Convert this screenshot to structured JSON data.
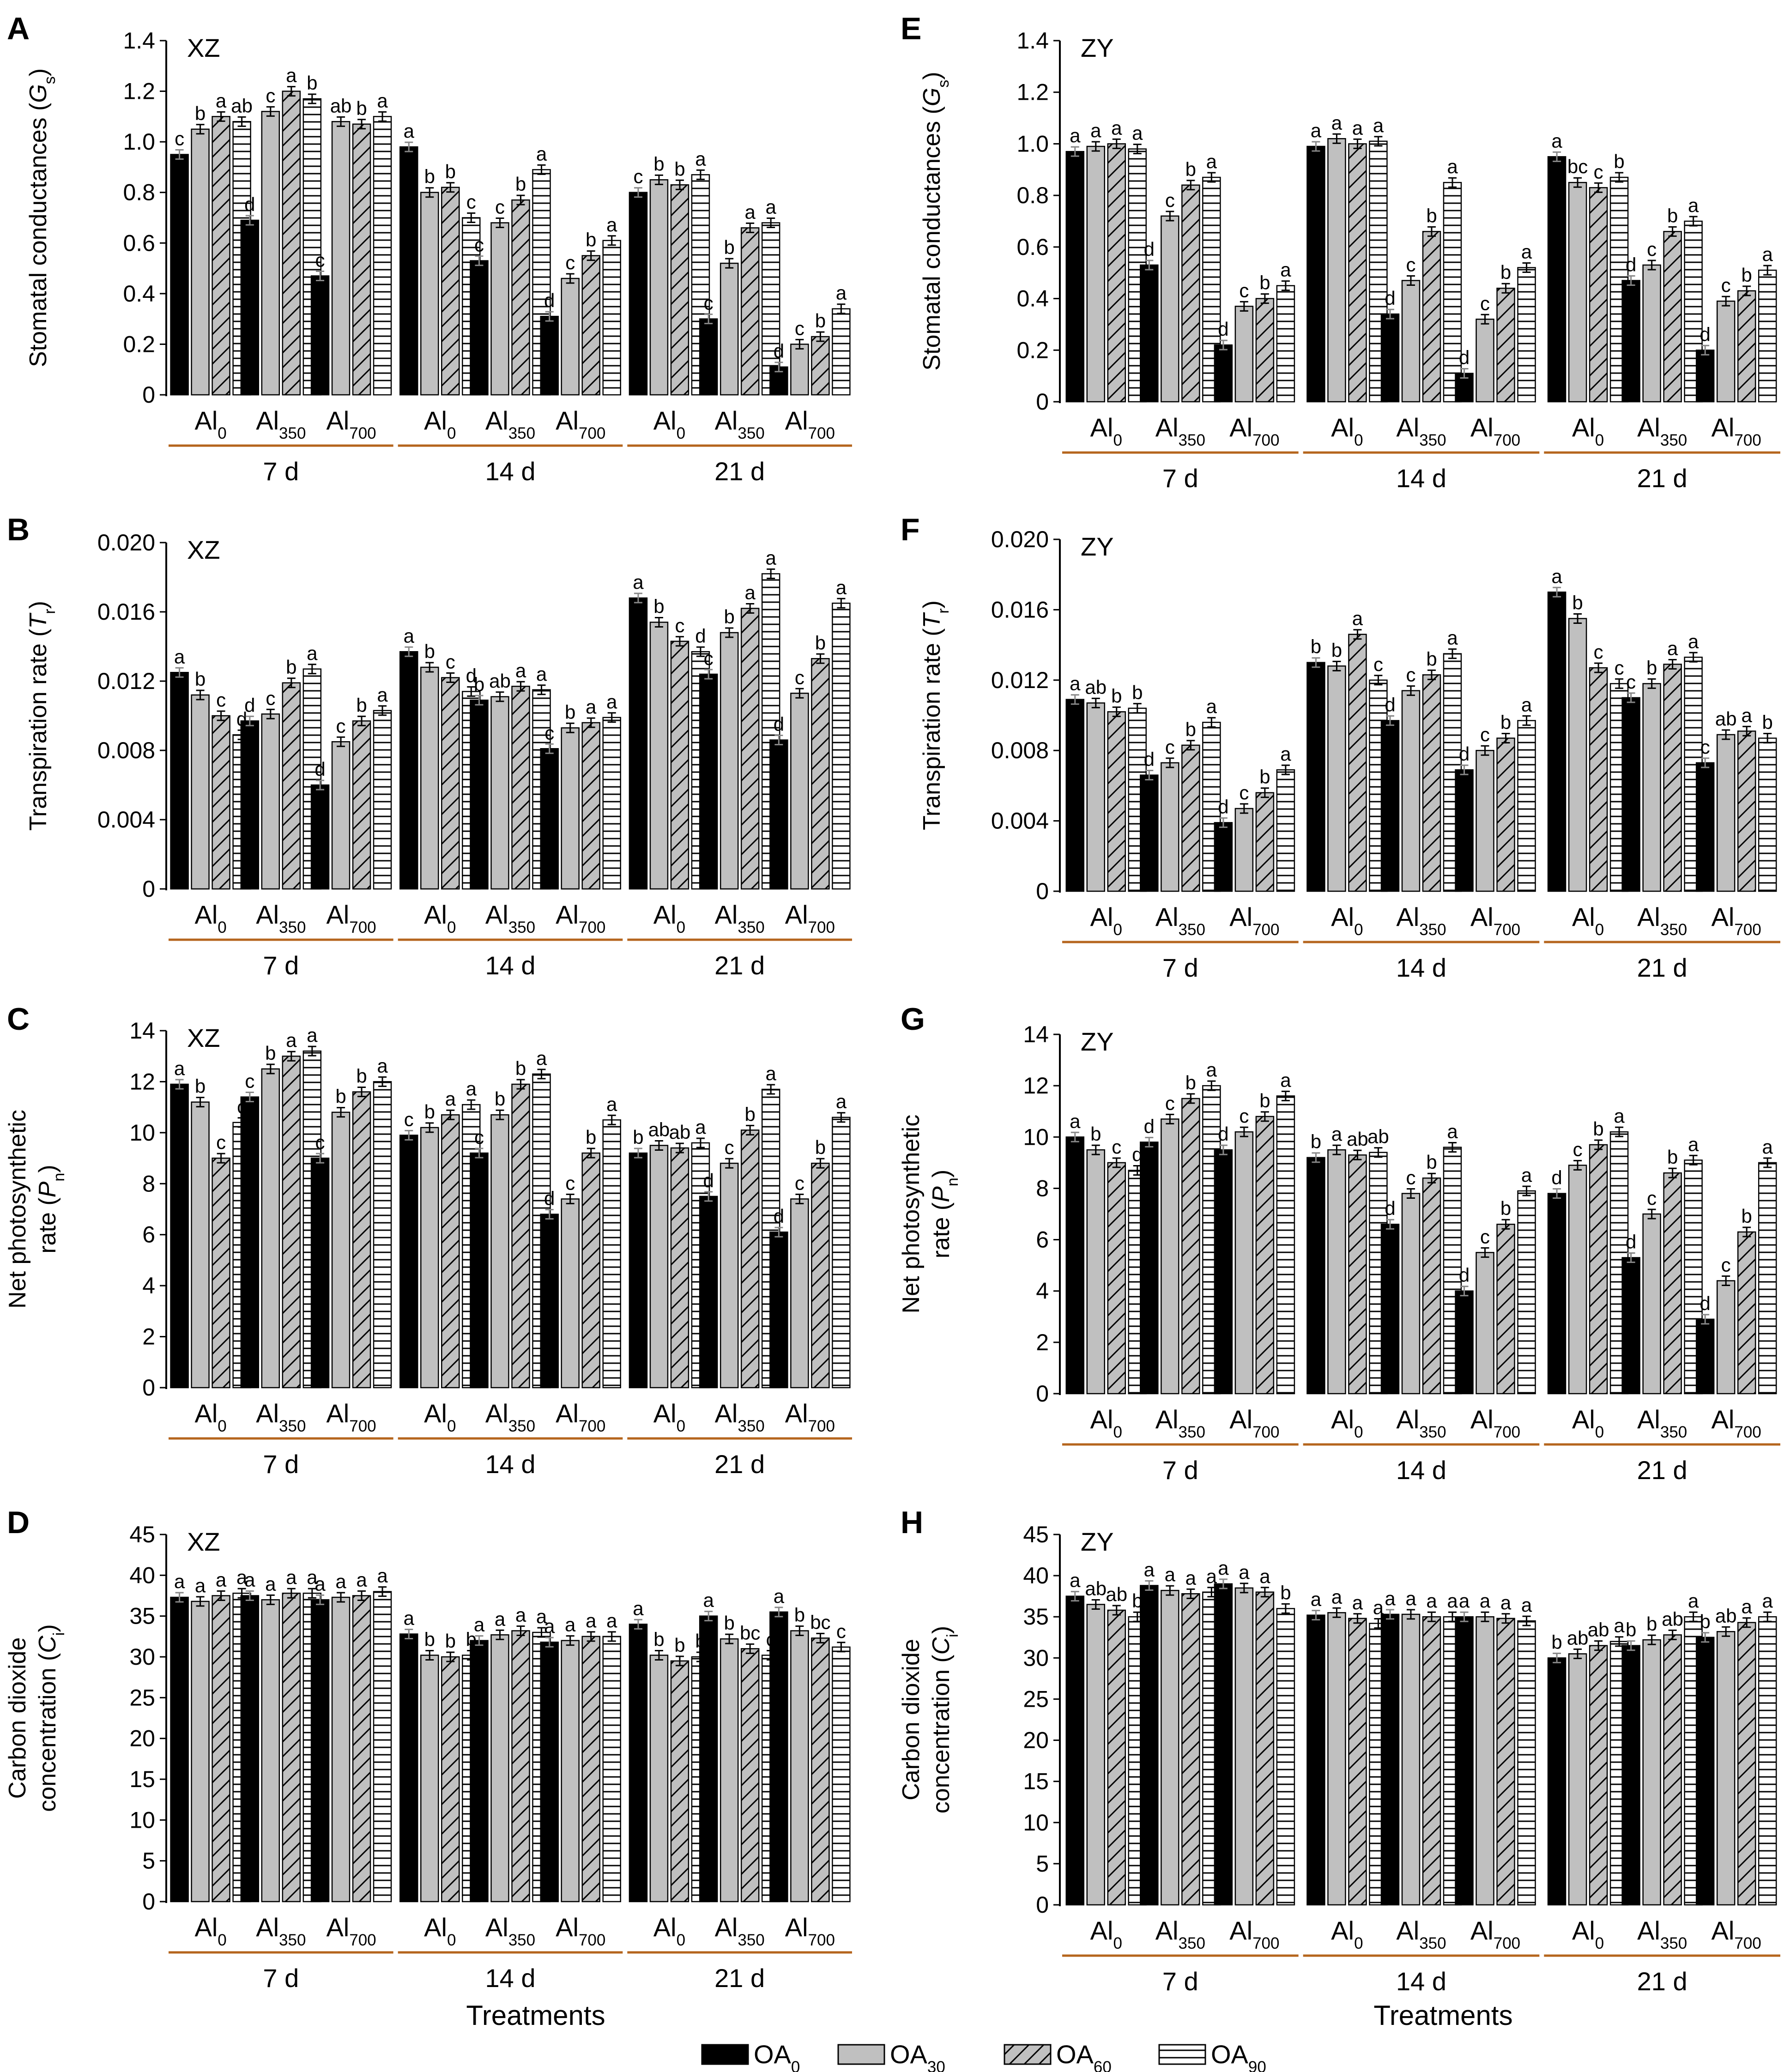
{
  "legend": {
    "items": [
      {
        "base": "OA",
        "sub": "0",
        "pattern": "solid"
      },
      {
        "base": "OA",
        "sub": "30",
        "pattern": "grey"
      },
      {
        "base": "OA",
        "sub": "60",
        "pattern": "diagonal"
      },
      {
        "base": "OA",
        "sub": "90",
        "pattern": "horizontal"
      }
    ]
  },
  "colors": {
    "solid": "#000000",
    "grey": "#c0c0c0",
    "bracket": "#b5651d"
  },
  "treatments_label": "Treatments",
  "days": [
    "7 d",
    "14 d",
    "21 d"
  ],
  "al_levels": [
    {
      "base": "Al",
      "sub": "0"
    },
    {
      "base": "Al",
      "sub": "350"
    },
    {
      "base": "Al",
      "sub": "700"
    }
  ],
  "chart_data": [
    {
      "panel": "A",
      "cultivar": "XZ",
      "type": "bar",
      "ylabel": {
        "pre": "Stomatal conductances (",
        "var": "G",
        "sub": "s",
        "post": ")"
      },
      "ylim": [
        0,
        1.4
      ],
      "ticks": [
        "0",
        "0.2",
        "0.4",
        "0.6",
        "0.8",
        "1.0",
        "1.2",
        "1.4"
      ],
      "series_names": [
        "OA0",
        "OA30",
        "OA60",
        "OA90"
      ],
      "values": [
        [
          [
            0.95,
            1.05,
            1.1,
            1.08
          ],
          [
            0.69,
            1.12,
            1.2,
            1.17
          ],
          [
            0.47,
            1.08,
            1.07,
            1.1
          ]
        ],
        [
          [
            0.98,
            0.8,
            0.82,
            0.7
          ],
          [
            0.53,
            0.68,
            0.77,
            0.89
          ],
          [
            0.31,
            0.46,
            0.55,
            0.61
          ]
        ],
        [
          [
            0.8,
            0.85,
            0.83,
            0.87
          ],
          [
            0.3,
            0.52,
            0.66,
            0.68
          ],
          [
            0.11,
            0.2,
            0.23,
            0.34
          ]
        ]
      ],
      "letters": [
        [
          [
            "c",
            "b",
            "a",
            "ab"
          ],
          [
            "d",
            "c",
            "a",
            "b"
          ],
          [
            "c",
            "ab",
            "b",
            "a"
          ]
        ],
        [
          [
            "a",
            "b",
            "b",
            "c"
          ],
          [
            "c",
            "c",
            "b",
            "a"
          ],
          [
            "d",
            "c",
            "b",
            "a"
          ]
        ],
        [
          [
            "c",
            "b",
            "b",
            "a"
          ],
          [
            "c",
            "b",
            "a",
            "a"
          ],
          [
            "d",
            "c",
            "b",
            "a"
          ]
        ]
      ]
    },
    {
      "panel": "B",
      "cultivar": "XZ",
      "type": "bar",
      "ylabel": {
        "pre": "Transpiration rate (",
        "var": "T",
        "sub": "r",
        "post": ")"
      },
      "ylim": [
        0,
        0.02
      ],
      "ticks": [
        "0",
        "0.004",
        "0.008",
        "0.012",
        "0.016",
        "0.020"
      ],
      "series_names": [
        "OA0",
        "OA30",
        "OA60",
        "OA90"
      ],
      "values": [
        [
          [
            0.0125,
            0.0112,
            0.01,
            0.0089
          ],
          [
            0.0097,
            0.0101,
            0.0119,
            0.0127
          ],
          [
            0.006,
            0.0085,
            0.0097,
            0.0103
          ]
        ],
        [
          [
            0.0137,
            0.0128,
            0.0122,
            0.0114
          ],
          [
            0.0109,
            0.0111,
            0.0117,
            0.0115
          ],
          [
            0.0081,
            0.0093,
            0.0096,
            0.0099
          ]
        ],
        [
          [
            0.0168,
            0.0154,
            0.0143,
            0.0137
          ],
          [
            0.0124,
            0.0148,
            0.0162,
            0.0182
          ],
          [
            0.0086,
            0.0113,
            0.0133,
            0.0165
          ]
        ]
      ],
      "letters": [
        [
          [
            "a",
            "b",
            "c",
            "d"
          ],
          [
            "d",
            "c",
            "b",
            "a"
          ],
          [
            "d",
            "c",
            "b",
            "a"
          ]
        ],
        [
          [
            "a",
            "b",
            "c",
            "d"
          ],
          [
            "b",
            "ab",
            "a",
            "a"
          ],
          [
            "c",
            "b",
            "a",
            "a"
          ]
        ],
        [
          [
            "a",
            "b",
            "c",
            "d"
          ],
          [
            "c",
            "b",
            "a",
            "a"
          ],
          [
            "d",
            "c",
            "b",
            "a"
          ]
        ]
      ]
    },
    {
      "panel": "C",
      "cultivar": "XZ",
      "type": "bar",
      "ylabel": {
        "pre": "Net photosynthetic",
        "pre2": "rate (",
        "var": "P",
        "sub": "n",
        "post": ")"
      },
      "ylim": [
        0,
        14
      ],
      "ticks": [
        "0",
        "2",
        "4",
        "6",
        "8",
        "10",
        "12",
        "14"
      ],
      "series_names": [
        "OA0",
        "OA30",
        "OA60",
        "OA90"
      ],
      "values": [
        [
          [
            11.9,
            11.2,
            9.0,
            10.4
          ],
          [
            11.4,
            12.5,
            13.0,
            13.2
          ],
          [
            9.0,
            10.8,
            11.6,
            12.0
          ]
        ],
        [
          [
            9.9,
            10.2,
            10.7,
            11.1
          ],
          [
            9.2,
            10.7,
            11.9,
            12.3
          ],
          [
            6.8,
            7.4,
            9.2,
            10.5
          ]
        ],
        [
          [
            9.2,
            9.5,
            9.4,
            9.6
          ],
          [
            7.5,
            8.8,
            10.1,
            11.7
          ],
          [
            6.1,
            7.4,
            8.8,
            10.6
          ]
        ]
      ],
      "letters": [
        [
          [
            "a",
            "b",
            "c",
            "c"
          ],
          [
            "c",
            "b",
            "a",
            "a"
          ],
          [
            "c",
            "b",
            "b",
            "a"
          ]
        ],
        [
          [
            "c",
            "b",
            "a",
            "a"
          ],
          [
            "c",
            "b",
            "b",
            "a"
          ],
          [
            "d",
            "c",
            "b",
            "a"
          ]
        ],
        [
          [
            "b",
            "ab",
            "ab",
            "a"
          ],
          [
            "d",
            "c",
            "b",
            "a"
          ],
          [
            "d",
            "c",
            "b",
            "a"
          ]
        ]
      ]
    },
    {
      "panel": "D",
      "cultivar": "XZ",
      "type": "bar",
      "ylabel": {
        "pre": "Carbon dioxide",
        "pre2": "concentration (",
        "var": "C",
        "sub": "i",
        "post": ")"
      },
      "ylim": [
        0,
        45
      ],
      "ticks": [
        "0",
        "5",
        "10",
        "15",
        "20",
        "25",
        "30",
        "35",
        "40",
        "45"
      ],
      "series_names": [
        "OA0",
        "OA30",
        "OA60",
        "OA90"
      ],
      "values": [
        [
          [
            37.3,
            36.8,
            37.5,
            37.8
          ],
          [
            37.5,
            37.0,
            37.8,
            37.8
          ],
          [
            37.0,
            37.3,
            37.5,
            38.0
          ]
        ],
        [
          [
            32.8,
            30.2,
            30.0,
            30.2
          ],
          [
            32.0,
            32.7,
            33.2,
            33.0
          ],
          [
            31.8,
            32.0,
            32.5,
            32.5
          ]
        ],
        [
          [
            34.0,
            30.2,
            29.5,
            30.0
          ],
          [
            35.0,
            32.2,
            31.0,
            30.2
          ],
          [
            35.5,
            33.2,
            32.3,
            31.2
          ]
        ]
      ],
      "letters": [
        [
          [
            "a",
            "a",
            "a",
            "a"
          ],
          [
            "a",
            "a",
            "a",
            "a"
          ],
          [
            "a",
            "a",
            "a",
            "a"
          ]
        ],
        [
          [
            "a",
            "b",
            "b",
            "b"
          ],
          [
            "a",
            "a",
            "a",
            "a"
          ],
          [
            "a",
            "a",
            "a",
            "a"
          ]
        ],
        [
          [
            "a",
            "b",
            "b",
            "b"
          ],
          [
            "a",
            "b",
            "bc",
            "c"
          ],
          [
            "a",
            "b",
            "bc",
            "c"
          ]
        ]
      ]
    },
    {
      "panel": "E",
      "cultivar": "ZY",
      "type": "bar",
      "ylabel": {
        "pre": "Stomatal conductances (",
        "var": "G",
        "sub": "s",
        "post": ")"
      },
      "ylim": [
        0,
        1.4
      ],
      "ticks": [
        "0",
        "0.2",
        "0.4",
        "0.6",
        "0.8",
        "1.0",
        "1.2",
        "1.4"
      ],
      "series_names": [
        "OA0",
        "OA30",
        "OA60",
        "OA90"
      ],
      "values": [
        [
          [
            0.97,
            0.99,
            1.0,
            0.98
          ],
          [
            0.53,
            0.72,
            0.84,
            0.87
          ],
          [
            0.22,
            0.37,
            0.4,
            0.45
          ]
        ],
        [
          [
            0.99,
            1.02,
            1.0,
            1.01
          ],
          [
            0.34,
            0.47,
            0.66,
            0.85
          ],
          [
            0.11,
            0.32,
            0.44,
            0.52
          ]
        ],
        [
          [
            0.95,
            0.85,
            0.83,
            0.87
          ],
          [
            0.47,
            0.53,
            0.66,
            0.7
          ],
          [
            0.2,
            0.39,
            0.43,
            0.51
          ]
        ]
      ],
      "letters": [
        [
          [
            "a",
            "a",
            "a",
            "a"
          ],
          [
            "d",
            "c",
            "b",
            "a"
          ],
          [
            "d",
            "c",
            "b",
            "a"
          ]
        ],
        [
          [
            "a",
            "a",
            "a",
            "a"
          ],
          [
            "d",
            "c",
            "b",
            "a"
          ],
          [
            "d",
            "c",
            "b",
            "a"
          ]
        ],
        [
          [
            "a",
            "bc",
            "c",
            "b"
          ],
          [
            "d",
            "c",
            "b",
            "a"
          ],
          [
            "d",
            "c",
            "b",
            "a"
          ]
        ]
      ]
    },
    {
      "panel": "F",
      "cultivar": "ZY",
      "type": "bar",
      "ylabel": {
        "pre": "Transpiration rate (",
        "var": "T",
        "sub": "r",
        "post": ")"
      },
      "ylim": [
        0,
        0.02
      ],
      "ticks": [
        "0",
        "0.004",
        "0.008",
        "0.012",
        "0.016",
        "0.020"
      ],
      "series_names": [
        "OA0",
        "OA30",
        "OA60",
        "OA90"
      ],
      "values": [
        [
          [
            0.0109,
            0.0107,
            0.0102,
            0.0104
          ],
          [
            0.0066,
            0.0073,
            0.0083,
            0.0096
          ],
          [
            0.0039,
            0.0047,
            0.0056,
            0.0069
          ]
        ],
        [
          [
            0.013,
            0.0128,
            0.0146,
            0.012
          ],
          [
            0.0097,
            0.0114,
            0.0123,
            0.0135
          ],
          [
            0.0069,
            0.008,
            0.0087,
            0.0097
          ]
        ],
        [
          [
            0.017,
            0.0155,
            0.0127,
            0.0118
          ],
          [
            0.011,
            0.0118,
            0.0129,
            0.0133
          ],
          [
            0.0073,
            0.0089,
            0.0091,
            0.0087
          ]
        ]
      ],
      "letters": [
        [
          [
            "a",
            "ab",
            "b",
            "b"
          ],
          [
            "d",
            "c",
            "b",
            "a"
          ],
          [
            "d",
            "c",
            "b",
            "a"
          ]
        ],
        [
          [
            "b",
            "b",
            "a",
            "c"
          ],
          [
            "d",
            "c",
            "b",
            "a"
          ],
          [
            "d",
            "c",
            "b",
            "a"
          ]
        ],
        [
          [
            "a",
            "b",
            "c",
            "c"
          ],
          [
            "c",
            "b",
            "a",
            "a"
          ],
          [
            "c",
            "ab",
            "a",
            "b"
          ]
        ]
      ]
    },
    {
      "panel": "G",
      "cultivar": "ZY",
      "type": "bar",
      "ylabel": {
        "pre": "Net photosynthetic",
        "pre2": "rate (",
        "var": "P",
        "sub": "n",
        "post": ")"
      },
      "ylim": [
        0,
        14
      ],
      "ticks": [
        "0",
        "2",
        "4",
        "6",
        "8",
        "10",
        "12",
        "14"
      ],
      "series_names": [
        "OA0",
        "OA30",
        "OA60",
        "OA90"
      ],
      "values": [
        [
          [
            10.0,
            9.5,
            9.0,
            8.7
          ],
          [
            9.8,
            10.7,
            11.5,
            12.0
          ],
          [
            9.5,
            10.2,
            10.8,
            11.6
          ]
        ],
        [
          [
            9.2,
            9.5,
            9.3,
            9.4
          ],
          [
            6.6,
            7.8,
            8.4,
            9.6
          ],
          [
            4.0,
            5.5,
            6.6,
            7.9
          ]
        ],
        [
          [
            7.8,
            8.9,
            9.7,
            10.2
          ],
          [
            5.3,
            7.0,
            8.6,
            9.1
          ],
          [
            2.9,
            4.4,
            6.3,
            9.0
          ]
        ]
      ],
      "letters": [
        [
          [
            "a",
            "b",
            "c",
            "d"
          ],
          [
            "d",
            "c",
            "b",
            "a"
          ],
          [
            "d",
            "c",
            "b",
            "a"
          ]
        ],
        [
          [
            "b",
            "a",
            "ab",
            "ab"
          ],
          [
            "d",
            "c",
            "b",
            "a"
          ],
          [
            "d",
            "c",
            "b",
            "a"
          ]
        ],
        [
          [
            "d",
            "c",
            "b",
            "a"
          ],
          [
            "d",
            "c",
            "b",
            "a"
          ],
          [
            "d",
            "c",
            "b",
            "a"
          ]
        ]
      ]
    },
    {
      "panel": "H",
      "cultivar": "ZY",
      "type": "bar",
      "ylabel": {
        "pre": "Carbon dioxide",
        "pre2": "concentration (",
        "var": "C",
        "sub": "i",
        "post": ")"
      },
      "ylim": [
        0,
        45
      ],
      "ticks": [
        "0",
        "5",
        "10",
        "15",
        "20",
        "25",
        "30",
        "35",
        "40",
        "45"
      ],
      "series_names": [
        "OA0",
        "OA30",
        "OA60",
        "OA90"
      ],
      "values": [
        [
          [
            37.5,
            36.5,
            35.8,
            35.0
          ],
          [
            38.8,
            38.2,
            37.8,
            38.0
          ],
          [
            39.0,
            38.5,
            38.0,
            36.0
          ]
        ],
        [
          [
            35.2,
            35.5,
            34.8,
            34.2
          ],
          [
            35.3,
            35.3,
            35.0,
            35.0
          ],
          [
            35.0,
            35.0,
            34.8,
            34.5
          ]
        ],
        [
          [
            30.0,
            30.5,
            31.5,
            32.0
          ],
          [
            31.5,
            32.2,
            32.8,
            35.0
          ],
          [
            32.5,
            33.2,
            34.3,
            35.0
          ]
        ]
      ],
      "letters": [
        [
          [
            "a",
            "ab",
            "ab",
            "b"
          ],
          [
            "a",
            "a",
            "a",
            "a"
          ],
          [
            "a",
            "a",
            "a",
            "b"
          ]
        ],
        [
          [
            "a",
            "a",
            "a",
            "a"
          ],
          [
            "a",
            "a",
            "a",
            "a"
          ],
          [
            "a",
            "a",
            "a",
            "a"
          ]
        ],
        [
          [
            "b",
            "ab",
            "ab",
            "a"
          ],
          [
            "b",
            "b",
            "ab",
            "a"
          ],
          [
            "b",
            "ab",
            "a",
            "a"
          ]
        ]
      ]
    }
  ]
}
